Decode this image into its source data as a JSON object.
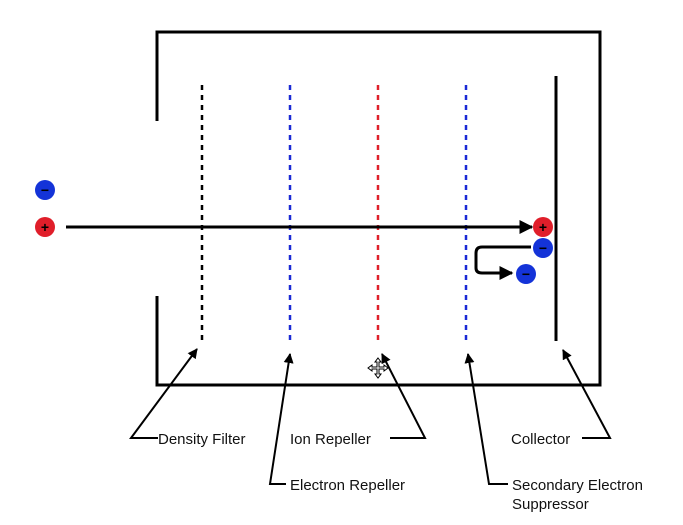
{
  "labels": {
    "density_filter": "Density Filter",
    "ion_repeller": "Ion Repeller",
    "collector": "Collector",
    "electron_repeller": "Electron Repeller",
    "secondary_electron_suppressor_line1": "Secondary Electron",
    "secondary_electron_suppressor_line2": "Suppressor"
  },
  "particles": {
    "positive_sign": "+",
    "negative_sign": "−"
  },
  "colors": {
    "housing": "#000000",
    "density_filter_grid": "#000000",
    "electron_repeller_grid": "#1a2ad6",
    "ion_repeller_grid": "#e0202a",
    "suppressor_grid": "#1a2ad6",
    "collector": "#000000",
    "positive_ion": "#e01e2a",
    "electron": "#1433d8"
  },
  "icons": {
    "cursor": "move-cursor-icon"
  }
}
